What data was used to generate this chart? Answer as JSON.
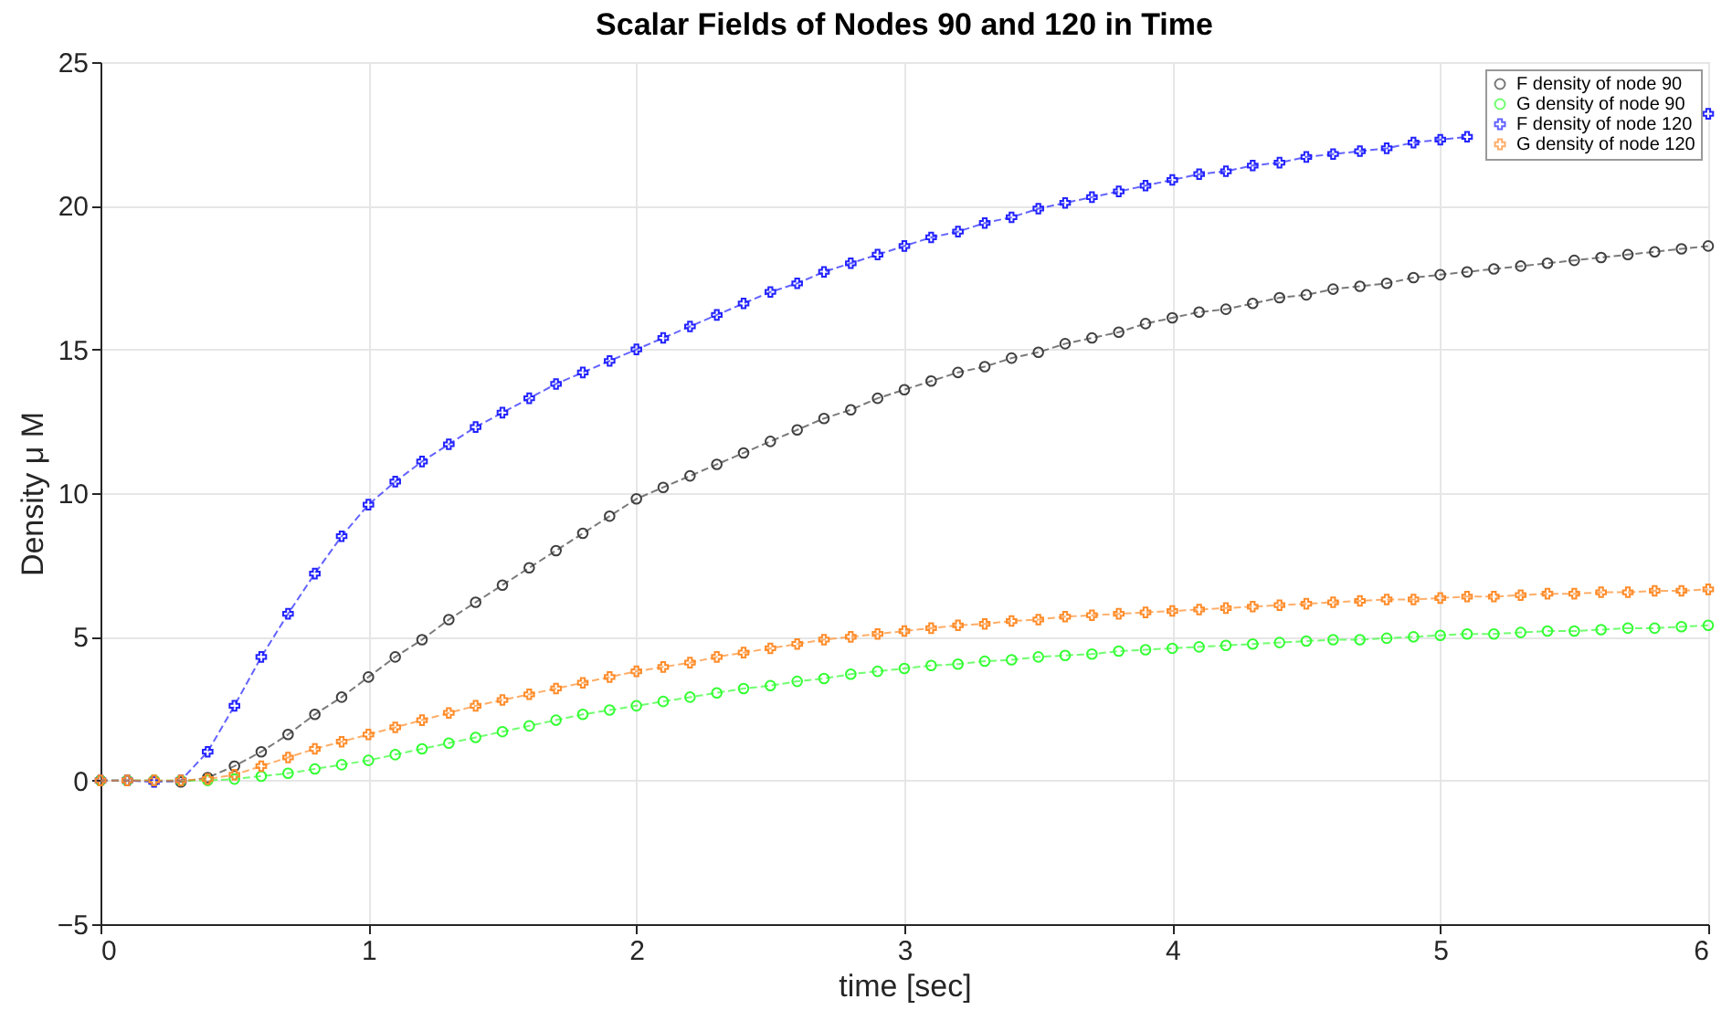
{
  "chart_data": {
    "type": "line",
    "title": "Scalar Fields of Nodes 90 and 120 in Time",
    "xlabel": "time [sec]",
    "ylabel": "Density μ M",
    "x": [
      0,
      0.1,
      0.2,
      0.3,
      0.4,
      0.5,
      0.6,
      0.7,
      0.8,
      0.9,
      1,
      1.1,
      1.2,
      1.3,
      1.4,
      1.5,
      1.6,
      1.7,
      1.8,
      1.9,
      2,
      2.1,
      2.2,
      2.3,
      2.4,
      2.5,
      2.6,
      2.7,
      2.8,
      2.9,
      3,
      3.1,
      3.2,
      3.3,
      3.4,
      3.5,
      3.6,
      3.7,
      3.8,
      3.9,
      4,
      4.1,
      4.2,
      4.3,
      4.4,
      4.5,
      4.6,
      4.7,
      4.8,
      4.9,
      5,
      5.1,
      5.2,
      5.3,
      5.4,
      5.5,
      5.6,
      5.7,
      5.8,
      5.9,
      6
    ],
    "series": [
      {
        "name": "F density of node 90",
        "color": "#404040",
        "marker": "circle",
        "values": [
          0,
          0,
          0,
          -0.05,
          0.1,
          0.5,
          1.0,
          1.6,
          2.3,
          2.9,
          3.6,
          4.3,
          4.9,
          5.6,
          6.2,
          6.8,
          7.4,
          8.0,
          8.6,
          9.2,
          9.8,
          10.2,
          10.6,
          11.0,
          11.4,
          11.8,
          12.2,
          12.6,
          12.9,
          13.3,
          13.6,
          13.9,
          14.2,
          14.4,
          14.7,
          14.9,
          15.2,
          15.4,
          15.6,
          15.9,
          16.1,
          16.3,
          16.4,
          16.6,
          16.8,
          16.9,
          17.1,
          17.2,
          17.3,
          17.5,
          17.6,
          17.7,
          17.8,
          17.9,
          18.0,
          18.1,
          18.2,
          18.3,
          18.4,
          18.5,
          18.6
        ]
      },
      {
        "name": "G density of node 90",
        "color": "#33ff33",
        "marker": "circle",
        "values": [
          0,
          0,
          0,
          0,
          0,
          0.05,
          0.15,
          0.25,
          0.4,
          0.55,
          0.7,
          0.9,
          1.1,
          1.3,
          1.5,
          1.7,
          1.9,
          2.1,
          2.3,
          2.45,
          2.6,
          2.75,
          2.9,
          3.05,
          3.2,
          3.3,
          3.45,
          3.55,
          3.7,
          3.8,
          3.9,
          4.0,
          4.05,
          4.15,
          4.2,
          4.3,
          4.35,
          4.4,
          4.5,
          4.55,
          4.6,
          4.65,
          4.7,
          4.75,
          4.8,
          4.85,
          4.9,
          4.9,
          4.95,
          5.0,
          5.05,
          5.1,
          5.1,
          5.15,
          5.2,
          5.2,
          5.25,
          5.3,
          5.3,
          5.35,
          5.4
        ]
      },
      {
        "name": "F density of node 120",
        "color": "#2222ff",
        "marker": "cross",
        "values": [
          0,
          0,
          -0.05,
          0,
          1.0,
          2.6,
          4.3,
          5.8,
          7.2,
          8.5,
          9.6,
          10.4,
          11.1,
          11.7,
          12.3,
          12.8,
          13.3,
          13.8,
          14.2,
          14.6,
          15.0,
          15.4,
          15.8,
          16.2,
          16.6,
          17.0,
          17.3,
          17.7,
          18.0,
          18.3,
          18.6,
          18.9,
          19.1,
          19.4,
          19.6,
          19.9,
          20.1,
          20.3,
          20.5,
          20.7,
          20.9,
          21.1,
          21.2,
          21.4,
          21.5,
          21.7,
          21.8,
          21.9,
          22.0,
          22.2,
          22.3,
          22.4,
          null,
          null,
          null,
          null,
          null,
          null,
          null,
          null,
          23.2
        ]
      },
      {
        "name": "G density of node 120",
        "color": "#ff8c2a",
        "marker": "cross",
        "values": [
          0,
          0,
          0,
          0,
          0.05,
          0.2,
          0.5,
          0.8,
          1.1,
          1.35,
          1.6,
          1.85,
          2.1,
          2.35,
          2.6,
          2.8,
          3.0,
          3.2,
          3.4,
          3.6,
          3.8,
          3.95,
          4.1,
          4.3,
          4.45,
          4.6,
          4.75,
          4.9,
          5.0,
          5.1,
          5.2,
          5.3,
          5.4,
          5.45,
          5.55,
          5.6,
          5.7,
          5.75,
          5.8,
          5.85,
          5.9,
          5.95,
          6.0,
          6.05,
          6.1,
          6.15,
          6.2,
          6.25,
          6.3,
          6.3,
          6.35,
          6.4,
          6.4,
          6.45,
          6.5,
          6.5,
          6.55,
          6.55,
          6.6,
          6.6,
          6.65
        ]
      }
    ],
    "xlim": [
      0,
      6
    ],
    "xticks": [
      0,
      1,
      2,
      3,
      4,
      5,
      6
    ],
    "ylim": [
      -5,
      25
    ],
    "yticks": [
      -5,
      0,
      5,
      10,
      15,
      20,
      25
    ],
    "grid": true,
    "legend": "top right",
    "line_style": "dashed"
  }
}
